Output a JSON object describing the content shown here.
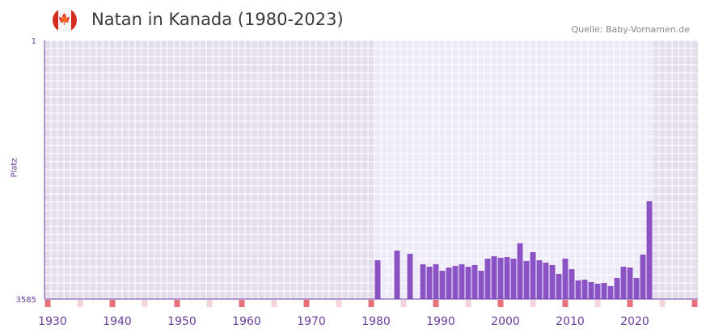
{
  "header": {
    "title": "Natan in Kanada (1980-2023)",
    "source": "Quelle: Baby-Vornamen.de",
    "flag_icon": "canada-flag-icon"
  },
  "colors": {
    "bar": "#8b52c6",
    "axis": "#6a3fa0",
    "tick_major": "#e8707a",
    "tick_minor": "#f3d3dc"
  },
  "chart_data": {
    "type": "bar",
    "title": "Natan in Kanada (1980-2023)",
    "ylabel": "Platz",
    "xlabel": "",
    "ylim": [
      3585,
      1
    ],
    "y_ticks": [
      "1",
      "3585"
    ],
    "xlim": [
      1928.5,
      2029.5
    ],
    "x_ticks": [
      1930,
      1940,
      1950,
      1960,
      1970,
      1980,
      1990,
      2000,
      2010,
      2020
    ],
    "grid": true,
    "x": [
      1980,
      1983,
      1985,
      1987,
      1988,
      1989,
      1990,
      1991,
      1992,
      1993,
      1994,
      1995,
      1996,
      1997,
      1998,
      1999,
      2000,
      2001,
      2002,
      2003,
      2004,
      2005,
      2006,
      2007,
      2008,
      2009,
      2010,
      2011,
      2012,
      2013,
      2014,
      2015,
      2016,
      2017,
      2018,
      2019,
      2020,
      2021,
      2022
    ],
    "values": [
      3047,
      2913,
      2958,
      3103,
      3137,
      3103,
      3193,
      3148,
      3126,
      3103,
      3137,
      3114,
      3193,
      3025,
      2991,
      3014,
      3003,
      3025,
      2812,
      3059,
      2935,
      3047,
      3081,
      3114,
      3238,
      3025,
      3171,
      3327,
      3316,
      3350,
      3372,
      3361,
      3406,
      3294,
      3137,
      3148,
      3294,
      2969,
      2230
    ]
  }
}
